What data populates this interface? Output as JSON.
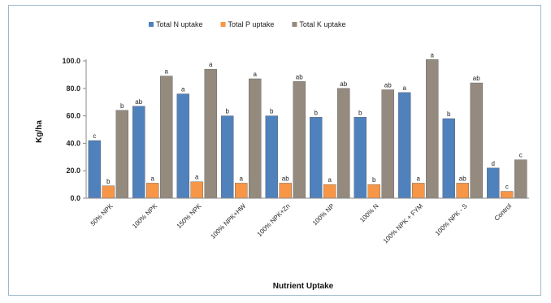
{
  "chart_data": {
    "type": "bar",
    "title": "",
    "xlabel": "Nutrient Uptake",
    "ylabel": "Kg/ha",
    "ylim": [
      0,
      100
    ],
    "yticks": [
      "0.0",
      "20.0",
      "40.0",
      "60.0",
      "80.0",
      "100.0"
    ],
    "grid": false,
    "legend_position": "top",
    "categories": [
      "50% NPK",
      "100% NPK",
      "150% NPK",
      "100% NPK+HW",
      "100% NPK+Zn",
      "100% NP",
      "100% N",
      "100% NPK + FYM",
      "100% NPK - S",
      "Control"
    ],
    "series": [
      {
        "name": "Total N uptake",
        "color": "#4f81bd",
        "values": [
          42,
          67,
          76,
          60,
          60,
          59,
          59,
          77,
          58,
          22
        ],
        "labels": [
          "c",
          "ab",
          "a",
          "b",
          "b",
          "b",
          "b",
          "a",
          "b",
          "d"
        ]
      },
      {
        "name": "Total P uptake",
        "color": "#f79646",
        "values": [
          9,
          11,
          12,
          11,
          11,
          10,
          10,
          11,
          11,
          5
        ],
        "labels": [
          "b",
          "a",
          "a",
          "a",
          "ab",
          "a",
          "b",
          "a",
          "ab",
          "c"
        ]
      },
      {
        "name": "Total K uptake",
        "color": "#948a7e",
        "values": [
          64,
          89,
          94,
          87,
          85,
          80,
          79,
          101,
          84,
          28
        ],
        "labels": [
          "b",
          "a",
          "a",
          "a",
          "ab",
          "ab",
          "ab",
          "a",
          "ab",
          "c"
        ]
      }
    ]
  }
}
